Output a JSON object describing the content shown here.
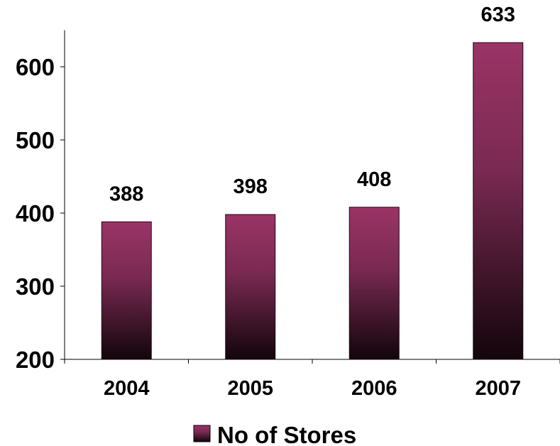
{
  "chart_data": {
    "type": "bar",
    "title": "",
    "xlabel": "",
    "ylabel": "",
    "categories": [
      "2004",
      "2005",
      "2006",
      "2007"
    ],
    "series": [
      {
        "name": "No of Stores",
        "values": [
          388,
          398,
          408,
          633
        ]
      }
    ],
    "data_labels": [
      "388",
      "398",
      "408",
      "633"
    ],
    "y_ticks": [
      200,
      300,
      400,
      500,
      600
    ],
    "y_tick_labels": [
      "200",
      "300",
      "400",
      "500",
      "600"
    ],
    "ylim": [
      200,
      650
    ],
    "grid": false,
    "legend": {
      "position": "bottom",
      "label": "No of Stores"
    },
    "colors": {
      "bar_top": "#9a3466",
      "bar_bottom": "#12050b",
      "axis": "#000000"
    }
  }
}
